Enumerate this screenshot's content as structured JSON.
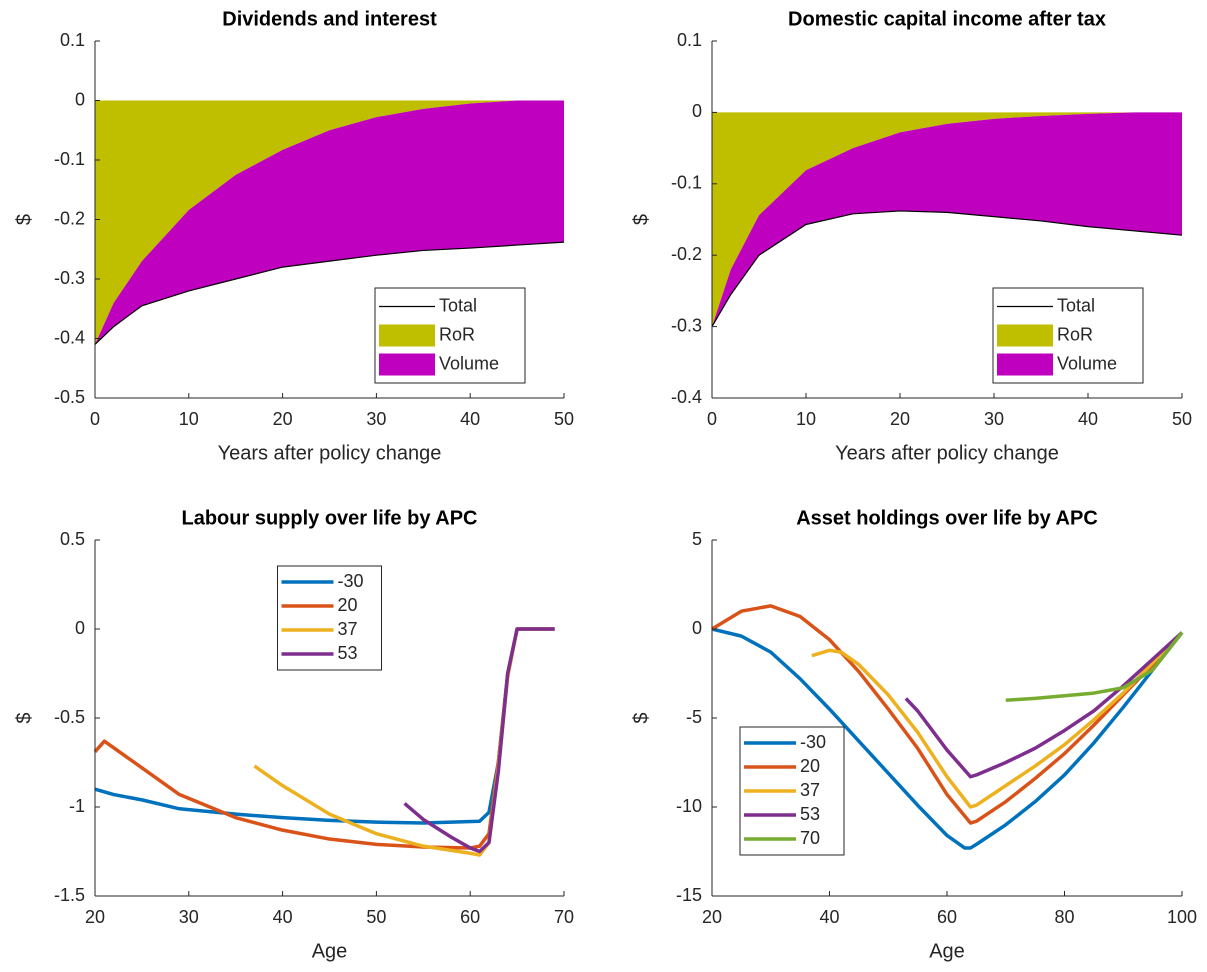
{
  "chart_data": [
    {
      "type": "area",
      "title": "Dividends and interest",
      "xlabel": "Years after policy change",
      "ylabel": "$",
      "x": [
        0,
        2,
        5,
        10,
        15,
        20,
        25,
        30,
        35,
        40,
        45,
        50
      ],
      "series": [
        {
          "name": "Total",
          "kind": "line",
          "color": "#000000",
          "values": [
            -0.41,
            -0.38,
            -0.345,
            -0.32,
            -0.3,
            -0.28,
            -0.27,
            -0.26,
            -0.252,
            -0.248,
            -0.243,
            -0.238
          ]
        },
        {
          "name": "RoR",
          "kind": "area",
          "color": "#bfbf00",
          "values": [
            -0.41,
            -0.34,
            -0.27,
            -0.184,
            -0.125,
            -0.083,
            -0.05,
            -0.028,
            -0.014,
            -0.005,
            0,
            0
          ]
        },
        {
          "name": "Volume",
          "kind": "area",
          "color": "#bf00bf",
          "values": [
            0,
            -0.04,
            -0.075,
            -0.136,
            -0.175,
            -0.197,
            -0.22,
            -0.232,
            -0.238,
            -0.243,
            -0.243,
            -0.238
          ]
        }
      ],
      "xlim": [
        0,
        50
      ],
      "xticks": [
        0,
        10,
        20,
        30,
        40,
        50
      ],
      "ylim": [
        -0.5,
        0.1
      ],
      "yticks": [
        -0.5,
        -0.4,
        -0.3,
        -0.2,
        -0.1,
        0,
        0.1
      ],
      "legend": "southeast"
    },
    {
      "type": "area",
      "title": "Domestic capital income after tax",
      "xlabel": "Years after policy change",
      "ylabel": "$",
      "x": [
        0,
        2,
        5,
        10,
        15,
        20,
        25,
        30,
        35,
        40,
        45,
        50
      ],
      "series": [
        {
          "name": "Total",
          "kind": "line",
          "color": "#000000",
          "values": [
            -0.3,
            -0.255,
            -0.2,
            -0.157,
            -0.142,
            -0.138,
            -0.14,
            -0.146,
            -0.152,
            -0.16,
            -0.166,
            -0.172
          ]
        },
        {
          "name": "RoR",
          "kind": "area",
          "color": "#bfbf00",
          "values": [
            -0.3,
            -0.22,
            -0.144,
            -0.081,
            -0.05,
            -0.028,
            -0.016,
            -0.009,
            -0.005,
            -0.002,
            0,
            0
          ]
        },
        {
          "name": "Volume",
          "kind": "area",
          "color": "#bf00bf",
          "values": [
            0,
            -0.035,
            -0.056,
            -0.076,
            -0.092,
            -0.11,
            -0.124,
            -0.137,
            -0.147,
            -0.158,
            -0.166,
            -0.172
          ]
        }
      ],
      "xlim": [
        0,
        50
      ],
      "xticks": [
        0,
        10,
        20,
        30,
        40,
        50
      ],
      "ylim": [
        -0.4,
        0.1
      ],
      "yticks": [
        -0.4,
        -0.3,
        -0.2,
        -0.1,
        0,
        0.1
      ],
      "legend": "southeast"
    },
    {
      "type": "line",
      "title": "Labour supply over life by APC",
      "xlabel": "Age",
      "ylabel": "$",
      "series": [
        {
          "name": "-30",
          "color": "#0072bd",
          "x": [
            20,
            22,
            25,
            29,
            35,
            40,
            45,
            50,
            55,
            61,
            62,
            63,
            64,
            65,
            69
          ],
          "values": [
            -0.9,
            -0.93,
            -0.96,
            -1.01,
            -1.04,
            -1.06,
            -1.075,
            -1.085,
            -1.09,
            -1.08,
            -1.03,
            -0.75,
            -0.25,
            0,
            0
          ]
        },
        {
          "name": "20",
          "color": "#d95319",
          "x": [
            20,
            21,
            25,
            29,
            35,
            40,
            45,
            50,
            55,
            60,
            61,
            62,
            63,
            64,
            65,
            69
          ],
          "values": [
            -0.69,
            -0.63,
            -0.78,
            -0.93,
            -1.06,
            -1.13,
            -1.18,
            -1.21,
            -1.225,
            -1.23,
            -1.22,
            -1.15,
            -0.75,
            -0.25,
            0,
            0
          ]
        },
        {
          "name": "37",
          "color": "#edb120",
          "x": [
            37,
            40,
            45,
            50,
            55,
            60,
            61,
            62,
            63,
            64,
            65,
            69
          ],
          "values": [
            -0.77,
            -0.88,
            -1.04,
            -1.15,
            -1.22,
            -1.26,
            -1.27,
            -1.2,
            -0.78,
            -0.27,
            0,
            0
          ]
        },
        {
          "name": "53",
          "color": "#7e2f8e",
          "x": [
            53,
            55,
            58,
            60,
            61,
            62,
            63,
            64,
            65,
            69
          ],
          "values": [
            -0.98,
            -1.07,
            -1.17,
            -1.23,
            -1.25,
            -1.2,
            -0.8,
            -0.25,
            0,
            0
          ]
        }
      ],
      "xlim": [
        20,
        70
      ],
      "xticks": [
        20,
        30,
        40,
        50,
        60,
        70
      ],
      "ylim": [
        -1.5,
        0.5
      ],
      "yticks": [
        -1.5,
        -1,
        -0.5,
        0,
        0.5
      ],
      "legend": "north"
    },
    {
      "type": "line",
      "title": "Asset holdings over life by APC",
      "xlabel": "Age",
      "ylabel": "$",
      "series": [
        {
          "name": "-30",
          "color": "#0072bd",
          "x": [
            20,
            25,
            30,
            35,
            40,
            45,
            50,
            55,
            60,
            63,
            64,
            65,
            70,
            75,
            80,
            85,
            90,
            95,
            100
          ],
          "values": [
            0,
            -0.4,
            -1.3,
            -2.8,
            -4.5,
            -6.3,
            -8.1,
            -9.9,
            -11.6,
            -12.3,
            -12.3,
            -12.1,
            -11,
            -9.7,
            -8.2,
            -6.4,
            -4.4,
            -2.3,
            -0.2
          ]
        },
        {
          "name": "20",
          "color": "#d95319",
          "x": [
            20,
            25,
            30,
            35,
            40,
            45,
            50,
            55,
            60,
            64,
            65,
            70,
            75,
            80,
            85,
            90,
            95,
            100
          ],
          "values": [
            0,
            1,
            1.3,
            0.7,
            -0.6,
            -2.4,
            -4.5,
            -6.7,
            -9.3,
            -10.9,
            -10.8,
            -9.7,
            -8.4,
            -7,
            -5.4,
            -3.7,
            -2,
            -0.2
          ]
        },
        {
          "name": "37",
          "color": "#edb120",
          "x": [
            37,
            40,
            42,
            45,
            50,
            55,
            60,
            64,
            65,
            70,
            75,
            80,
            85,
            90,
            95,
            100
          ],
          "values": [
            -1.5,
            -1.2,
            -1.3,
            -2,
            -3.7,
            -5.8,
            -8.3,
            -10,
            -9.9,
            -8.8,
            -7.7,
            -6.5,
            -5.1,
            -3.6,
            -1.9,
            -0.2
          ]
        },
        {
          "name": "53",
          "color": "#7e2f8e",
          "x": [
            53,
            55,
            60,
            64,
            65,
            70,
            75,
            80,
            85,
            90,
            95,
            100
          ],
          "values": [
            -3.9,
            -4.6,
            -6.8,
            -8.3,
            -8.2,
            -7.5,
            -6.7,
            -5.7,
            -4.6,
            -3.2,
            -1.7,
            -0.2
          ]
        },
        {
          "name": "70",
          "color": "#77ac30",
          "x": [
            70,
            75,
            80,
            85,
            90,
            95,
            100
          ],
          "values": [
            -4,
            -3.9,
            -3.75,
            -3.6,
            -3.3,
            -2.3,
            -0.2
          ]
        }
      ],
      "xlim": [
        20,
        100
      ],
      "xticks": [
        20,
        40,
        60,
        80,
        100
      ],
      "ylim": [
        -15,
        5
      ],
      "yticks": [
        -15,
        -10,
        -5,
        0,
        5
      ],
      "legend": "southwest"
    }
  ]
}
